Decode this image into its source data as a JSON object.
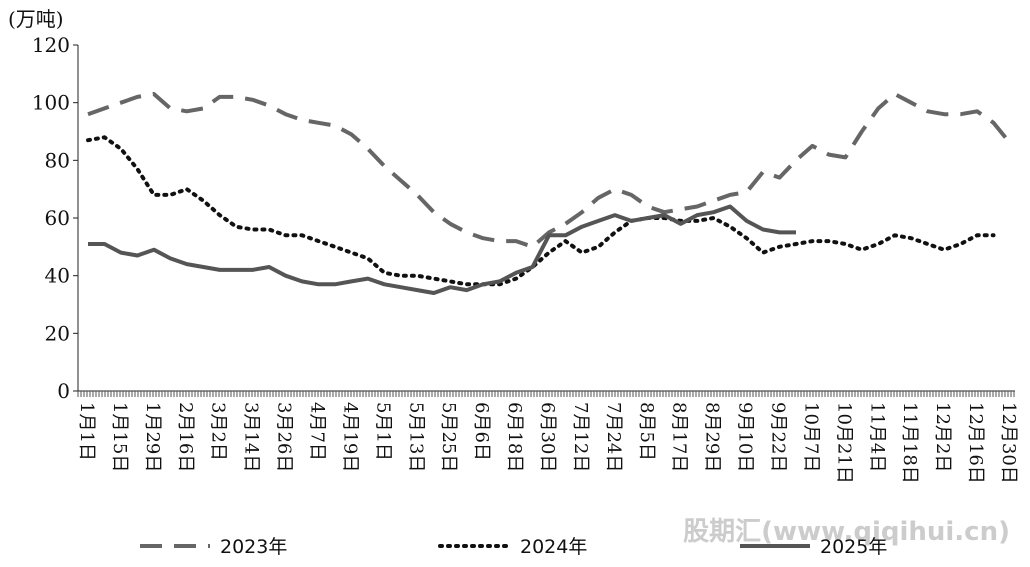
{
  "chart_data": {
    "type": "line",
    "y_label": "(万吨)",
    "watermark": "股期汇(www.qiqihui.cn)",
    "categories": [
      "1月1日",
      null,
      "1月15日",
      null,
      "1月29日",
      null,
      "2月16日",
      null,
      "3月2日",
      null,
      "3月14日",
      null,
      "3月26日",
      null,
      "4月7日",
      null,
      "4月19日",
      null,
      "5月1日",
      null,
      "5月13日",
      null,
      "5月25日",
      null,
      "6月6日",
      null,
      "6月18日",
      null,
      "6月30日",
      null,
      "7月12日",
      null,
      "7月24日",
      null,
      "8月5日",
      null,
      "8月17日",
      null,
      "8月29日",
      null,
      "9月10日",
      null,
      "9月22日",
      null,
      "10月7日",
      null,
      "10月21日",
      null,
      "11月4日",
      null,
      "11月18日",
      null,
      "12月2日",
      null,
      "12月16日",
      null,
      "12月30日"
    ],
    "series": [
      {
        "name": "2023年",
        "color": "#666666",
        "dash": "dashed",
        "values": [
          96,
          98,
          100,
          102,
          103,
          98,
          97,
          98,
          102,
          102,
          101,
          99,
          96,
          94,
          93,
          92,
          89,
          84,
          78,
          73,
          68,
          62,
          58,
          55,
          53,
          52,
          52,
          50,
          55,
          58,
          62,
          67,
          70,
          68,
          64,
          62,
          63,
          64,
          66,
          68,
          69,
          76,
          74,
          80,
          85,
          82,
          81,
          90,
          98,
          103,
          100,
          97,
          96,
          96,
          97,
          93,
          86
        ]
      },
      {
        "name": "2024年",
        "color": "#111111",
        "dash": "dotted",
        "values": [
          87,
          88,
          84,
          77,
          68,
          68,
          70,
          66,
          61,
          57,
          56,
          56,
          54,
          54,
          52,
          50,
          48,
          46,
          41,
          40,
          40,
          39,
          38,
          37,
          37,
          37,
          39,
          43,
          48,
          52,
          48,
          50,
          55,
          59,
          60,
          60,
          59,
          59,
          60,
          57,
          53,
          48,
          50,
          51,
          52,
          52,
          51,
          49,
          51,
          54,
          53,
          51,
          49,
          51,
          54,
          54,
          null
        ]
      },
      {
        "name": "2025年",
        "color": "#555555",
        "dash": "solid",
        "values": [
          51,
          51,
          48,
          47,
          49,
          46,
          44,
          43,
          42,
          42,
          42,
          43,
          40,
          38,
          37,
          37,
          38,
          39,
          37,
          36,
          35,
          34,
          36,
          35,
          37,
          38,
          41,
          43,
          54,
          54,
          57,
          59,
          61,
          59,
          60,
          61,
          58,
          61,
          62,
          64,
          59,
          56,
          55,
          55,
          null,
          null,
          null,
          null,
          null,
          null,
          null,
          null,
          null,
          null,
          null,
          null,
          null
        ]
      }
    ],
    "ylim": [
      0,
      120
    ],
    "yticks": [
      0,
      20,
      40,
      60,
      80,
      100,
      120
    ]
  }
}
